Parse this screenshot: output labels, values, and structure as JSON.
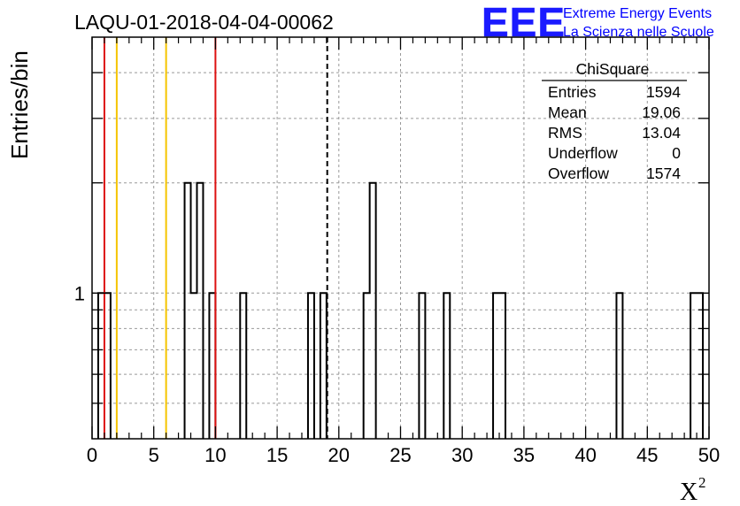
{
  "chart_data": {
    "type": "histogram",
    "title": "LAQU-01-2018-04-04-00062",
    "xlabel": "X",
    "xlabel_superscript": "2",
    "ylabel": "Entries/bin",
    "xlim": [
      0,
      50
    ],
    "ylog": true,
    "ylim": [
      0.4,
      5
    ],
    "x_ticks": [
      0,
      5,
      10,
      15,
      20,
      25,
      30,
      35,
      40,
      45,
      50
    ],
    "y_tick_labels": [
      {
        "value": 1,
        "label": "1"
      }
    ],
    "bin_width": 0.5,
    "bins": [
      {
        "x": 0.5,
        "count": 1
      },
      {
        "x": 1.0,
        "count": 1
      },
      {
        "x": 7.5,
        "count": 2
      },
      {
        "x": 8.0,
        "count": 1
      },
      {
        "x": 8.5,
        "count": 2
      },
      {
        "x": 9.5,
        "count": 1
      },
      {
        "x": 12.0,
        "count": 1
      },
      {
        "x": 17.5,
        "count": 1
      },
      {
        "x": 18.5,
        "count": 1
      },
      {
        "x": 22.0,
        "count": 1
      },
      {
        "x": 22.5,
        "count": 2
      },
      {
        "x": 26.5,
        "count": 1
      },
      {
        "x": 28.5,
        "count": 1
      },
      {
        "x": 32.5,
        "count": 1
      },
      {
        "x": 33.0,
        "count": 1
      },
      {
        "x": 42.5,
        "count": 1
      },
      {
        "x": 48.5,
        "count": 1
      },
      {
        "x": 49.0,
        "count": 1
      }
    ],
    "reference_lines": [
      {
        "x": 1.0,
        "color": "#dd1111",
        "style": "solid"
      },
      {
        "x": 2.0,
        "color": "#f5c400",
        "style": "solid"
      },
      {
        "x": 6.0,
        "color": "#f5c400",
        "style": "solid"
      },
      {
        "x": 10.0,
        "color": "#dd1111",
        "style": "solid"
      },
      {
        "x": 19.06,
        "color": "#000000",
        "style": "dashed"
      }
    ],
    "stats": {
      "name": "ChiSquare",
      "rows": [
        {
          "label": "Entries",
          "value": "1594"
        },
        {
          "label": "Mean",
          "value": "19.06"
        },
        {
          "label": "RMS",
          "value": "13.04"
        },
        {
          "label": "Underflow",
          "value": "0"
        },
        {
          "label": "Overflow",
          "value": "1574"
        }
      ]
    }
  },
  "logo": {
    "mark": "EEE",
    "line1": "Extreme Energy Events",
    "line2": "La Scienza nelle Scuole"
  },
  "colors": {
    "histogram": "#000000",
    "grid": "#999999",
    "logo": "#0000ff"
  }
}
